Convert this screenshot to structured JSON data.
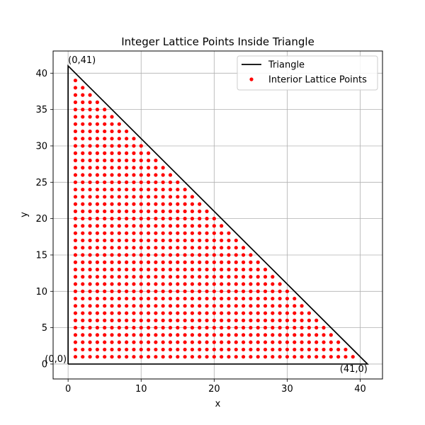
{
  "chart_data": {
    "type": "scatter",
    "title": "Integer Lattice Points Inside Triangle",
    "xlabel": "x",
    "ylabel": "y",
    "xlim": [
      -2.05,
      43.05
    ],
    "ylim": [
      -2.05,
      43.05
    ],
    "xticks": [
      0,
      10,
      20,
      30,
      40
    ],
    "yticks": [
      0,
      5,
      10,
      15,
      20,
      25,
      30,
      35,
      40
    ],
    "grid": true,
    "legend_position": "upper-right",
    "triangle": {
      "name": "Triangle",
      "vertices": [
        [
          0,
          0
        ],
        [
          41,
          0
        ],
        [
          0,
          41
        ]
      ],
      "color": "#000000"
    },
    "interior_points": {
      "name": "Interior Lattice Points",
      "rule": "x >= 1, y >= 1, x + y <= 40",
      "color": "#ff0000"
    },
    "annotations": [
      {
        "text": "(0,0)",
        "x": 0,
        "y": 0
      },
      {
        "text": "(41,0)",
        "x": 41,
        "y": 0
      },
      {
        "text": "(0,41)",
        "x": 0,
        "y": 41
      }
    ]
  }
}
